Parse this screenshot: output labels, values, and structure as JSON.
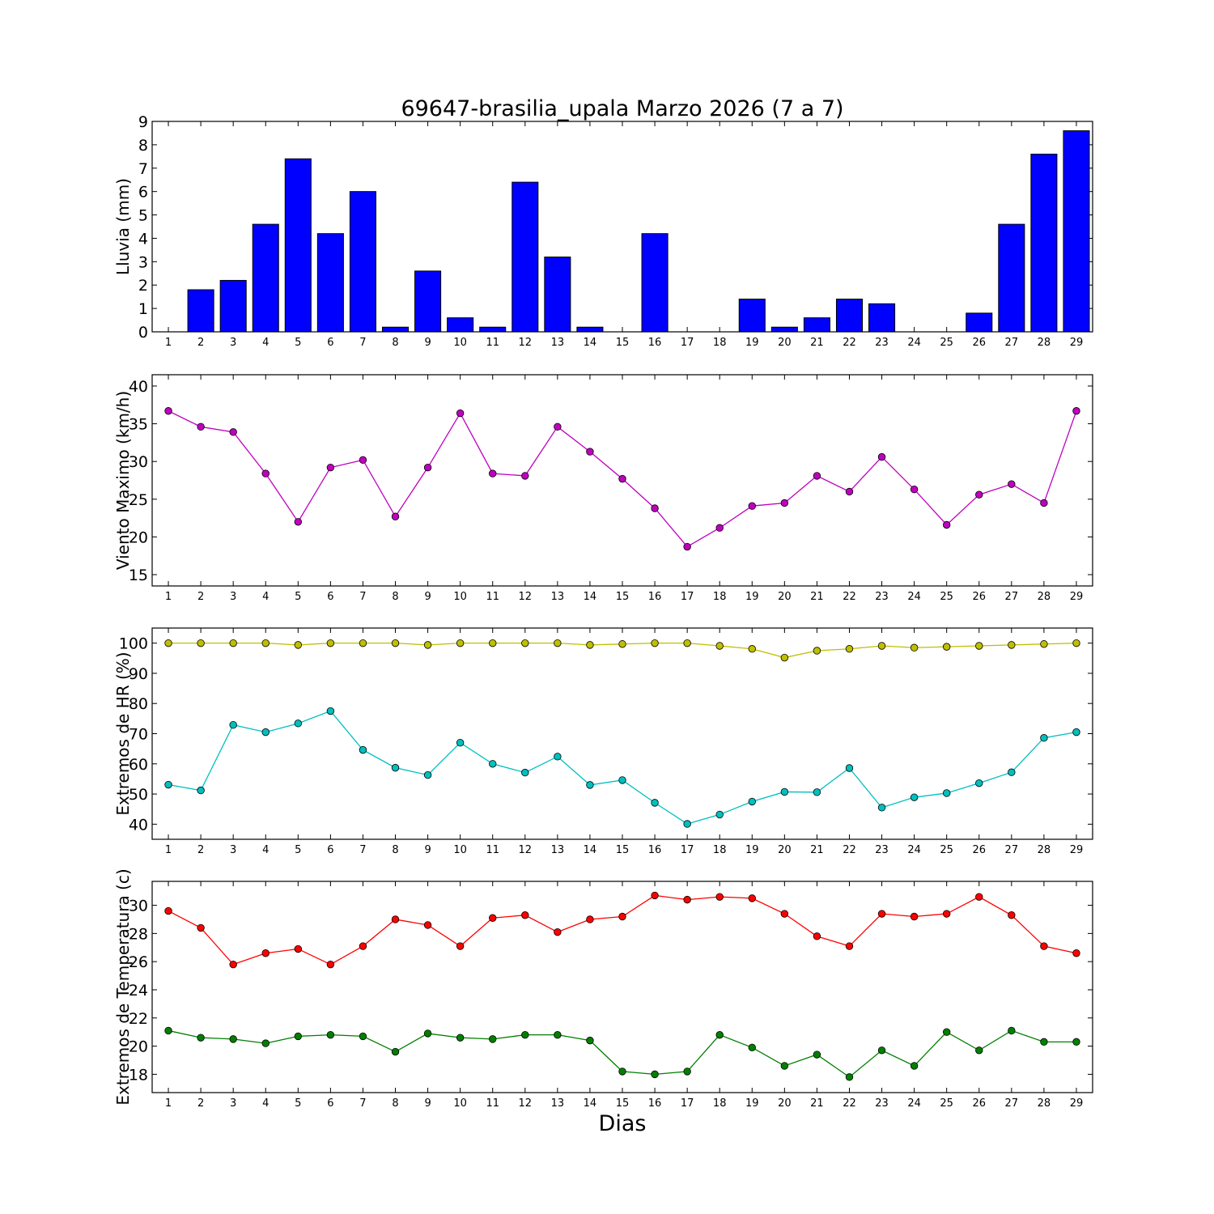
{
  "chart_data": [
    {
      "type": "bar",
      "title": "69647-brasilia_upala Marzo 2026  (7 a 7)",
      "ylabel": "Lluvia (mm)",
      "x": [
        1,
        2,
        3,
        4,
        5,
        6,
        7,
        8,
        9,
        10,
        11,
        12,
        13,
        14,
        15,
        16,
        17,
        18,
        19,
        20,
        21,
        22,
        23,
        24,
        25,
        26,
        27,
        28,
        29
      ],
      "ylim": [
        0,
        9
      ],
      "yticks": [
        0,
        1,
        2,
        3,
        4,
        5,
        6,
        7,
        8,
        9
      ],
      "series": [
        {
          "color": "#0000ff",
          "values": [
            0,
            1.8,
            2.2,
            4.6,
            7.4,
            4.2,
            6.0,
            0.2,
            2.6,
            0.6,
            0.2,
            6.4,
            3.2,
            0.2,
            0,
            4.2,
            0,
            0,
            1.4,
            0.2,
            0.6,
            1.4,
            1.2,
            0,
            0,
            0.8,
            4.6,
            7.6,
            8.6
          ]
        }
      ]
    },
    {
      "type": "line",
      "ylabel": "Viento Maximo (km/h)",
      "x": [
        1,
        2,
        3,
        4,
        5,
        6,
        7,
        8,
        9,
        10,
        11,
        12,
        13,
        14,
        15,
        16,
        17,
        18,
        19,
        20,
        21,
        22,
        23,
        24,
        25,
        26,
        27,
        28,
        29
      ],
      "ylim": [
        13.5,
        41.5
      ],
      "yticks": [
        15,
        20,
        25,
        30,
        35,
        40
      ],
      "series": [
        {
          "color": "#bf00bf",
          "values": [
            36.7,
            34.6,
            33.9,
            28.4,
            22.0,
            29.2,
            30.2,
            22.7,
            29.2,
            36.4,
            28.4,
            28.1,
            34.6,
            31.3,
            27.7,
            23.8,
            18.7,
            21.2,
            24.1,
            24.5,
            28.1,
            26.0,
            30.6,
            26.3,
            21.6,
            25.6,
            27.0,
            24.5,
            36.7
          ]
        }
      ]
    },
    {
      "type": "line",
      "ylabel": "Extremos de HR (%)",
      "x": [
        1,
        2,
        3,
        4,
        5,
        6,
        7,
        8,
        9,
        10,
        11,
        12,
        13,
        14,
        15,
        16,
        17,
        18,
        19,
        20,
        21,
        22,
        23,
        24,
        25,
        26,
        27,
        28,
        29
      ],
      "ylim": [
        35,
        105
      ],
      "yticks": [
        40,
        50,
        60,
        70,
        80,
        90,
        100
      ],
      "series": [
        {
          "color": "#bfbf00",
          "values": [
            100,
            100,
            100,
            100,
            99.4,
            100,
            100,
            100,
            99.4,
            100,
            100,
            100,
            100,
            99.4,
            99.7,
            100,
            100,
            99.1,
            98.1,
            95.2,
            97.5,
            98.1,
            99.1,
            98.5,
            98.8,
            99.1,
            99.4,
            99.7,
            100
          ]
        },
        {
          "color": "#00bfbf",
          "values": [
            53.1,
            51.2,
            72.9,
            70.5,
            73.4,
            77.5,
            64.6,
            58.7,
            56.3,
            67.0,
            60.0,
            57.1,
            62.4,
            53.0,
            54.6,
            47.1,
            40.1,
            43.2,
            47.5,
            50.7,
            50.6,
            58.6,
            45.5,
            48.9,
            50.3,
            53.6,
            57.2,
            68.6,
            70.5
          ]
        }
      ]
    },
    {
      "type": "line",
      "ylabel": "Extremos de Temperatura (c)",
      "xlabel": "Dias",
      "x": [
        1,
        2,
        3,
        4,
        5,
        6,
        7,
        8,
        9,
        10,
        11,
        12,
        13,
        14,
        15,
        16,
        17,
        18,
        19,
        20,
        21,
        22,
        23,
        24,
        25,
        26,
        27,
        28,
        29
      ],
      "ylim": [
        16.7,
        31.7
      ],
      "yticks": [
        18,
        20,
        22,
        24,
        26,
        28,
        30
      ],
      "series": [
        {
          "color": "#ff0000",
          "values": [
            29.6,
            28.4,
            25.8,
            26.6,
            26.9,
            25.8,
            27.1,
            29.0,
            28.6,
            27.1,
            29.1,
            29.3,
            28.1,
            29.0,
            29.2,
            30.7,
            30.4,
            30.6,
            30.5,
            29.4,
            27.8,
            27.1,
            29.4,
            29.2,
            29.4,
            30.6,
            29.3,
            27.1,
            26.6
          ]
        },
        {
          "color": "#007f00",
          "values": [
            21.1,
            20.6,
            20.5,
            20.2,
            20.7,
            20.8,
            20.7,
            19.6,
            20.9,
            20.6,
            20.5,
            20.8,
            20.8,
            20.4,
            18.2,
            18.0,
            18.2,
            20.8,
            19.9,
            18.6,
            19.4,
            17.8,
            19.7,
            18.6,
            21.0,
            19.7,
            21.1,
            20.3,
            20.3
          ]
        }
      ]
    }
  ]
}
